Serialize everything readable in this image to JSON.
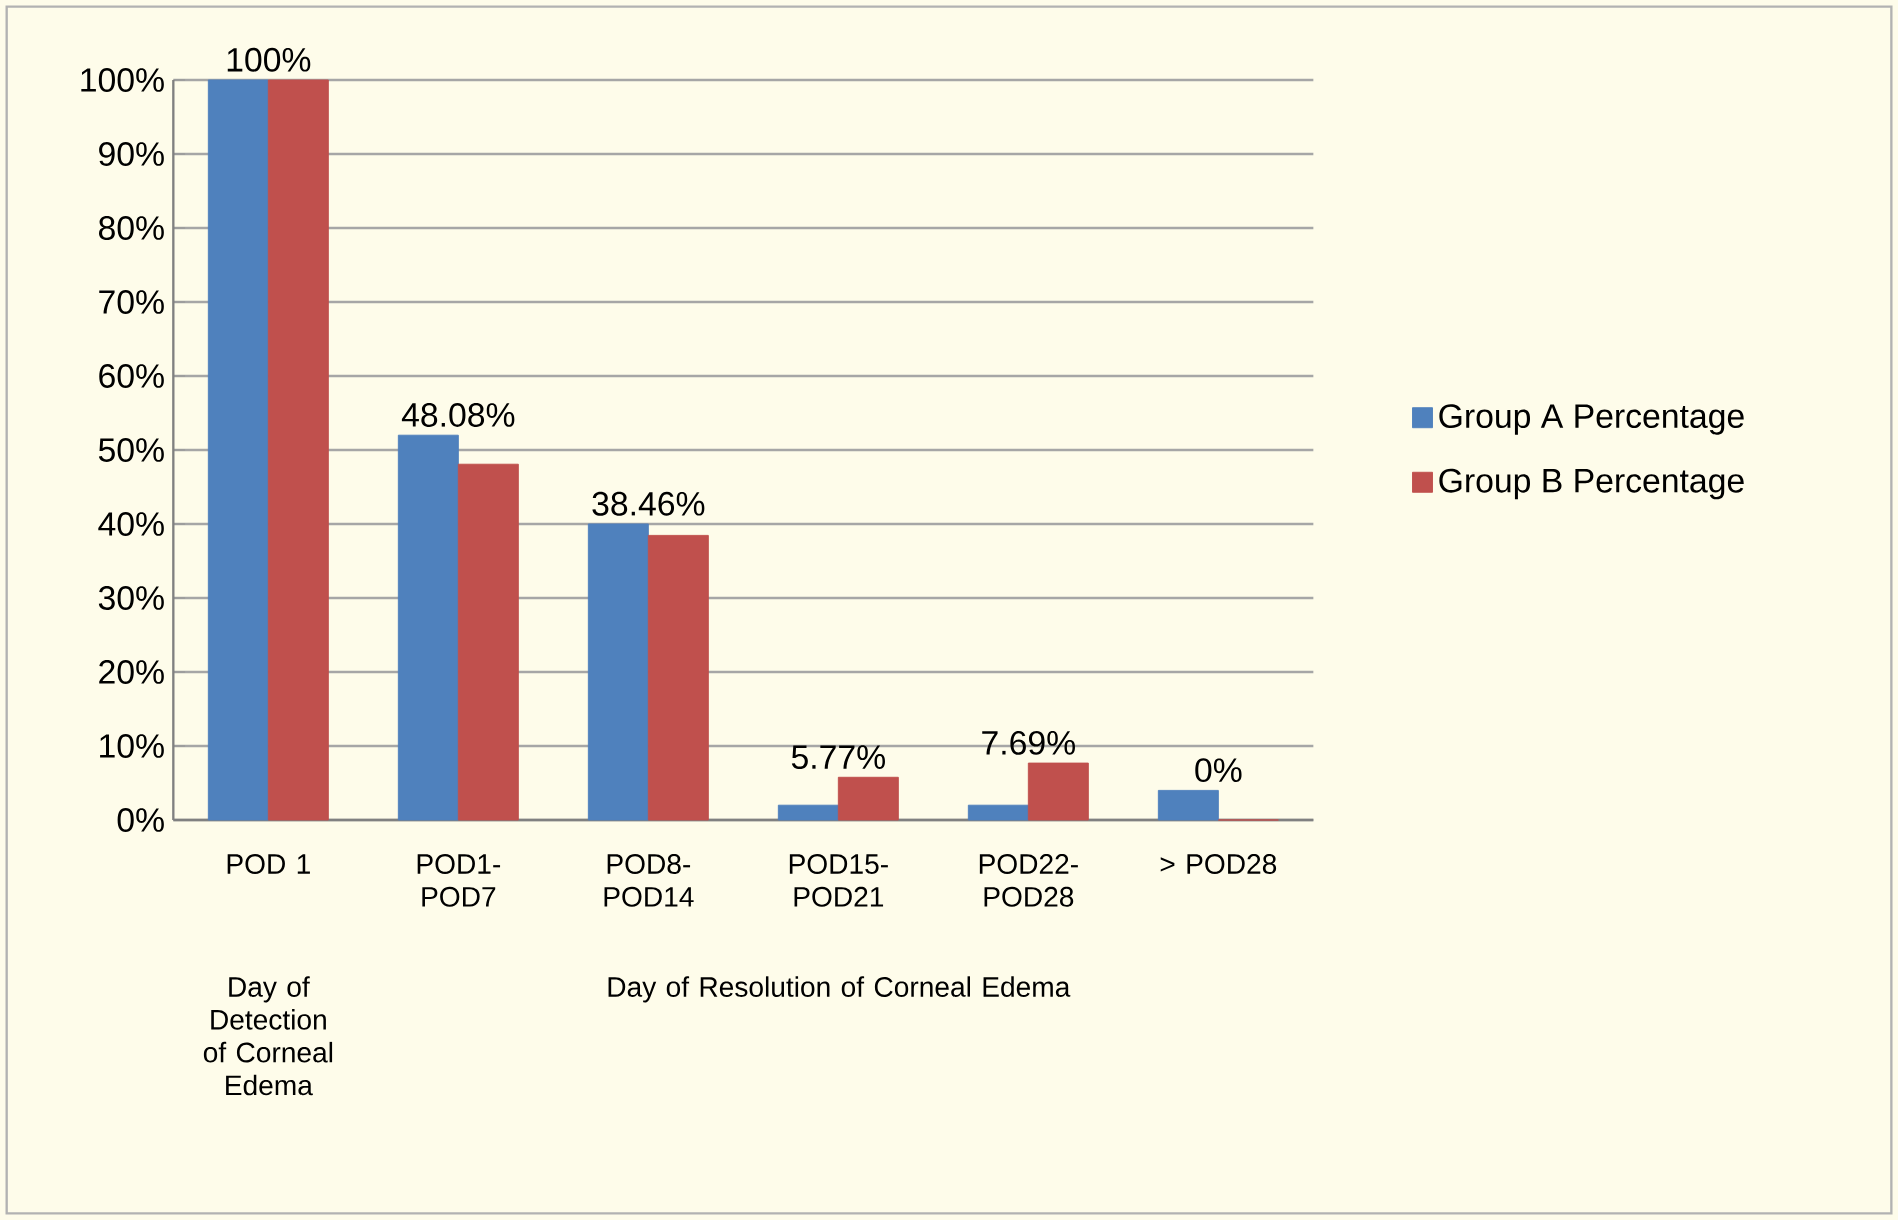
{
  "chart_data": {
    "type": "bar",
    "categories": [
      "POD 1",
      "POD1-POD7",
      "POD8-POD14",
      "POD15-POD21",
      "POD22-POD28",
      "> POD28"
    ],
    "series": [
      {
        "name": "Group A Percentage",
        "color": "#4f81bd",
        "values": [
          100,
          52,
          40,
          2,
          2,
          4
        ]
      },
      {
        "name": "Group B Percentage",
        "color": "#c0504d",
        "values": [
          100,
          48.08,
          38.46,
          5.77,
          7.69,
          0
        ],
        "value_labels": [
          "100%",
          "48.08%",
          "38.46%",
          "5.77%",
          "7.69%",
          "0%"
        ]
      }
    ],
    "ylim": [
      0,
      100
    ],
    "yticks": [
      {
        "value": 0,
        "label": "0%"
      },
      {
        "value": 10,
        "label": "10%"
      },
      {
        "value": 20,
        "label": "20%"
      },
      {
        "value": 30,
        "label": "30%"
      },
      {
        "value": 40,
        "label": "40%"
      },
      {
        "value": 50,
        "label": "50%"
      },
      {
        "value": 60,
        "label": "60%"
      },
      {
        "value": 70,
        "label": "70%"
      },
      {
        "value": 80,
        "label": "80%"
      },
      {
        "value": 90,
        "label": "90%"
      },
      {
        "value": 100,
        "label": "100%"
      }
    ],
    "annotations": [
      "Day of Detection of Corneal Edema",
      "Day of Resolution of Corneal Edema"
    ],
    "grid": "y",
    "legend": "right"
  }
}
